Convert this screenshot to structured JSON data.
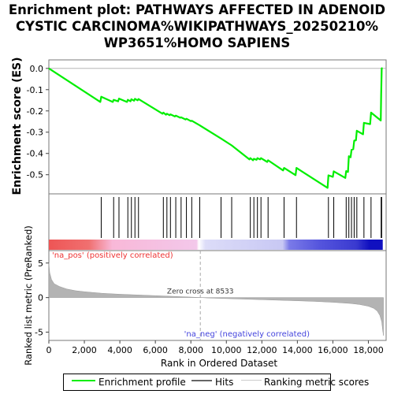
{
  "title_lines": [
    "Enrichment plot: PATHWAYS AFFECTED IN ADENOID",
    "CYSTIC CARCINOMA%WIKIPATHWAYS_20250210%",
    "WP3651%HOMO SAPIENS"
  ],
  "colors": {
    "es_line": "#00ee00",
    "hits": "#000000",
    "ranked_fill": "#b3b3b3",
    "pos_label": "#ee3333",
    "neg_label": "#4444dd",
    "zero_cross_line": "#aaaaaa"
  },
  "chart_data": [
    {
      "type": "line",
      "ylabel": "Enrichment score (ES)",
      "xlim": [
        0,
        19000
      ],
      "ylim": [
        -0.59,
        0.04
      ],
      "yticks": [
        0.0,
        -0.1,
        -0.2,
        -0.3,
        -0.4,
        -0.5
      ],
      "ytick_labels": [
        "0.0",
        "-0.1",
        "-0.2",
        "-0.3",
        "-0.4",
        "-0.5"
      ],
      "series": [
        {
          "x": [
            0,
            2900,
            2950,
            3600,
            3650,
            3900,
            3950,
            4400,
            4450,
            4600,
            4650,
            4800,
            4850,
            5000,
            5050,
            6400,
            6450,
            6600,
            6650,
            6800,
            6850,
            7100,
            7150,
            7400,
            7450,
            7700,
            7750,
            8000,
            8050,
            8500,
            9700,
            10300,
            11300,
            11350,
            11500,
            11550,
            11700,
            11750,
            11900,
            11950,
            12300,
            12350,
            13200,
            13250,
            13900,
            13950,
            15700,
            15750,
            16000,
            16050,
            16700,
            16750,
            16850,
            16900,
            17000,
            17050,
            17150,
            17200,
            17300,
            17350,
            17700,
            17750,
            18100,
            18150,
            18700,
            18720,
            18750,
            18800
          ],
          "y": [
            0.0,
            -0.158,
            -0.133,
            -0.158,
            -0.148,
            -0.155,
            -0.142,
            -0.158,
            -0.148,
            -0.155,
            -0.145,
            -0.152,
            -0.143,
            -0.15,
            -0.144,
            -0.213,
            -0.208,
            -0.218,
            -0.213,
            -0.22,
            -0.216,
            -0.226,
            -0.222,
            -0.232,
            -0.23,
            -0.24,
            -0.237,
            -0.248,
            -0.246,
            -0.268,
            -0.33,
            -0.362,
            -0.428,
            -0.422,
            -0.432,
            -0.425,
            -0.43,
            -0.422,
            -0.428,
            -0.422,
            -0.44,
            -0.432,
            -0.48,
            -0.468,
            -0.502,
            -0.468,
            -0.562,
            -0.503,
            -0.51,
            -0.484,
            -0.515,
            -0.483,
            -0.487,
            -0.413,
            -0.418,
            -0.383,
            -0.38,
            -0.34,
            -0.338,
            -0.293,
            -0.31,
            -0.256,
            -0.262,
            -0.208,
            -0.245,
            -0.125,
            0.0,
            0.002
          ]
        }
      ]
    },
    {
      "type": "scatter",
      "hits": [
        2950,
        3650,
        3950,
        4450,
        4650,
        4850,
        5050,
        6450,
        6650,
        6850,
        7150,
        7450,
        7750,
        8050,
        8500,
        9700,
        10300,
        11350,
        11550,
        11750,
        11950,
        12350,
        13250,
        13950,
        15750,
        16050,
        16750,
        16900,
        17050,
        17200,
        17350,
        17750,
        18150,
        18720,
        18750
      ]
    },
    {
      "type": "area",
      "ylabel": "Ranked list metric (PreRanked)",
      "xlabel": "Rank in Ordered Dataset",
      "xlim": [
        0,
        19000
      ],
      "ylim": [
        -6.2,
        6.8
      ],
      "yticks": [
        5,
        0,
        -5
      ],
      "ytick_labels": [
        "5",
        "0",
        "-5"
      ],
      "xticks": [
        0,
        2000,
        4000,
        6000,
        8000,
        10000,
        12000,
        14000,
        16000,
        18000
      ],
      "xtick_labels": [
        "0",
        "2,000",
        "4,000",
        "6,000",
        "8,000",
        "10,000",
        "12,000",
        "14,000",
        "16,000",
        "18,000"
      ],
      "x": [
        0,
        50,
        150,
        300,
        600,
        1000,
        1500,
        2000,
        3000,
        4000,
        5000,
        6000,
        7000,
        8000,
        8533,
        9000,
        10000,
        11000,
        12000,
        13000,
        14000,
        15000,
        16000,
        17000,
        17500,
        18000,
        18300,
        18500,
        18650,
        18750,
        18800,
        18850
      ],
      "values": [
        5.0,
        3.6,
        2.6,
        2.0,
        1.6,
        1.25,
        1.0,
        0.85,
        0.62,
        0.48,
        0.38,
        0.28,
        0.18,
        0.07,
        0.0,
        -0.07,
        -0.15,
        -0.22,
        -0.3,
        -0.38,
        -0.46,
        -0.56,
        -0.68,
        -0.85,
        -1.0,
        -1.25,
        -1.55,
        -1.95,
        -2.6,
        -3.5,
        -4.6,
        -5.5
      ],
      "zero_cross": 8533,
      "zero_cross_label": "Zero cross at 8533",
      "pos_label": "'na_pos' (positively correlated)",
      "neg_label": "'na_neg' (negatively correlated)"
    }
  ],
  "legend": {
    "items": [
      {
        "label": "Enrichment profile"
      },
      {
        "label": "Hits"
      },
      {
        "label": "Ranking metric scores"
      }
    ]
  }
}
